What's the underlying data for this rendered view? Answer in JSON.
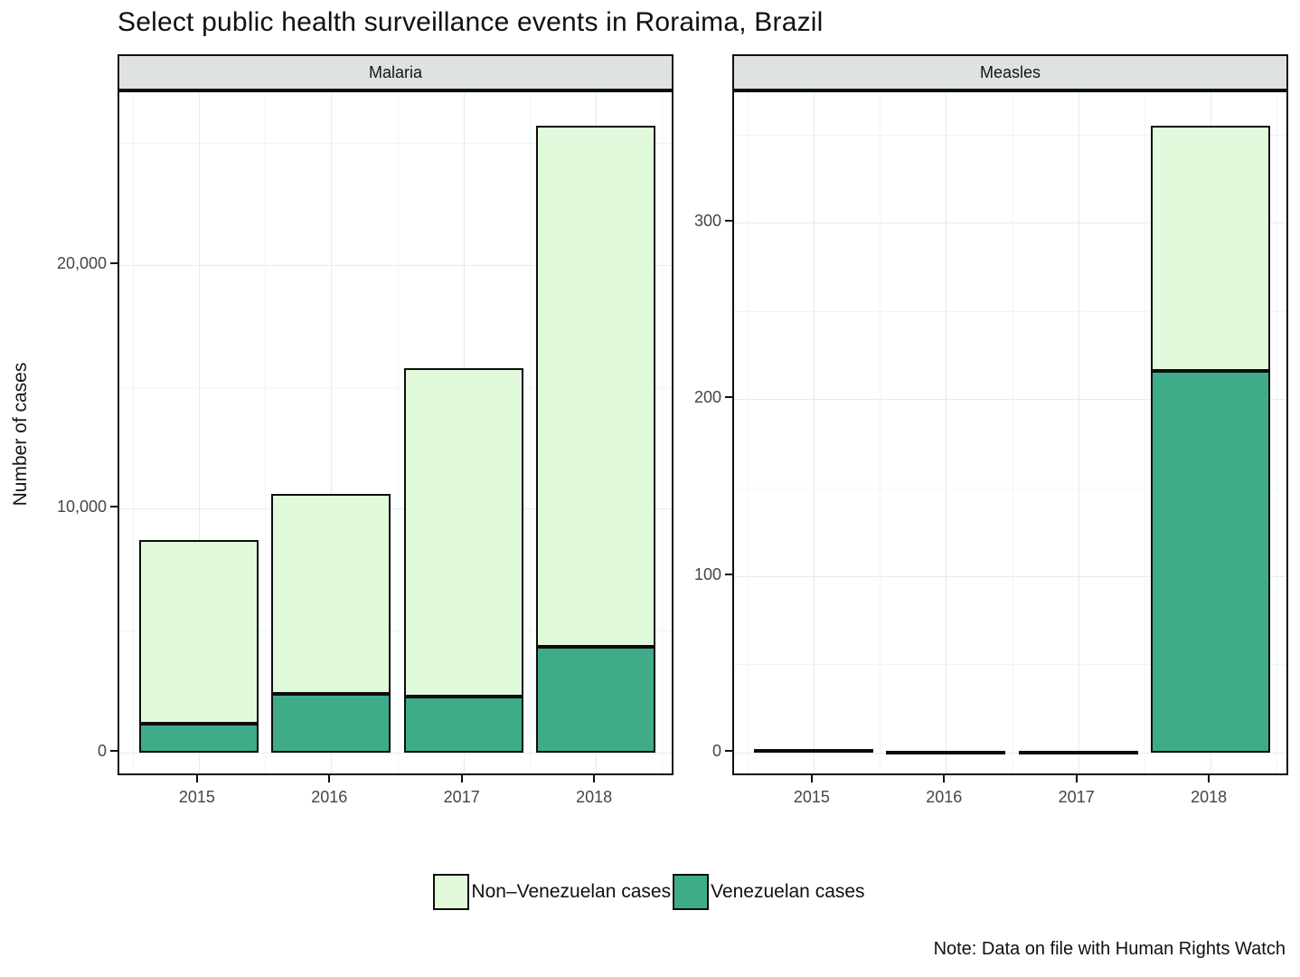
{
  "title": "Select public health surveillance events in Roraima, Brazil",
  "y_axis_title": "Number of cases",
  "note": "Note: Data on file with Human Rights Watch",
  "legend": [
    {
      "label": "Non–Venezuelan cases",
      "color": "#e1fadc"
    },
    {
      "label": "Venezuelan cases",
      "color": "#3eac88"
    }
  ],
  "colors": {
    "non_venezuelan_fill": "#e1fadc",
    "venezuelan_fill": "#3eac88",
    "bar_outline": "#0d0d0d",
    "panel_strip_bg": "#dfe3df",
    "panel_border": "#101010",
    "grid_major": "#e3ecee",
    "grid_minor": "#f1f5f6",
    "tick_text": "#454545"
  },
  "chart_data": [
    {
      "type": "bar",
      "stacked": true,
      "panel": "Malaria",
      "categories": [
        "2015",
        "2016",
        "2017",
        "2018"
      ],
      "series": [
        {
          "name": "Venezuelan cases",
          "color": "#3eac88",
          "values": [
            1200,
            2400,
            2300,
            4350
          ]
        },
        {
          "name": "Non–Venezuelan cases",
          "color": "#e1fadc",
          "values": [
            7500,
            8200,
            13450,
            21350
          ]
        }
      ],
      "totals": [
        8700,
        10600,
        15750,
        25700
      ],
      "xlabel": "",
      "ylabel": "Number of cases",
      "yticks": [
        0,
        10000,
        20000
      ],
      "ytick_labels": [
        "0",
        "10,000",
        "20,000"
      ],
      "yticks_minor": [
        5000,
        15000,
        25000
      ],
      "ylim": [
        -1006,
        27076
      ],
      "grid": true,
      "legend_position": "bottom"
    },
    {
      "type": "bar",
      "stacked": true,
      "panel": "Measles",
      "categories": [
        "2015",
        "2016",
        "2017",
        "2018"
      ],
      "series": [
        {
          "name": "Venezuelan cases",
          "color": "#3eac88",
          "values": [
            0,
            0,
            0,
            216
          ]
        },
        {
          "name": "Non–Venezuelan cases",
          "color": "#e1fadc",
          "values": [
            2,
            1,
            1,
            139
          ]
        }
      ],
      "totals": [
        2,
        1,
        1,
        355
      ],
      "xlabel": "",
      "ylabel": "Number of cases",
      "yticks": [
        0,
        100,
        200,
        300
      ],
      "ytick_labels": [
        "0",
        "100",
        "200",
        "300"
      ],
      "yticks_minor": [
        50,
        150,
        250,
        350
      ],
      "ylim": [
        -14,
        374
      ],
      "grid": true,
      "legend_position": "bottom"
    }
  ]
}
